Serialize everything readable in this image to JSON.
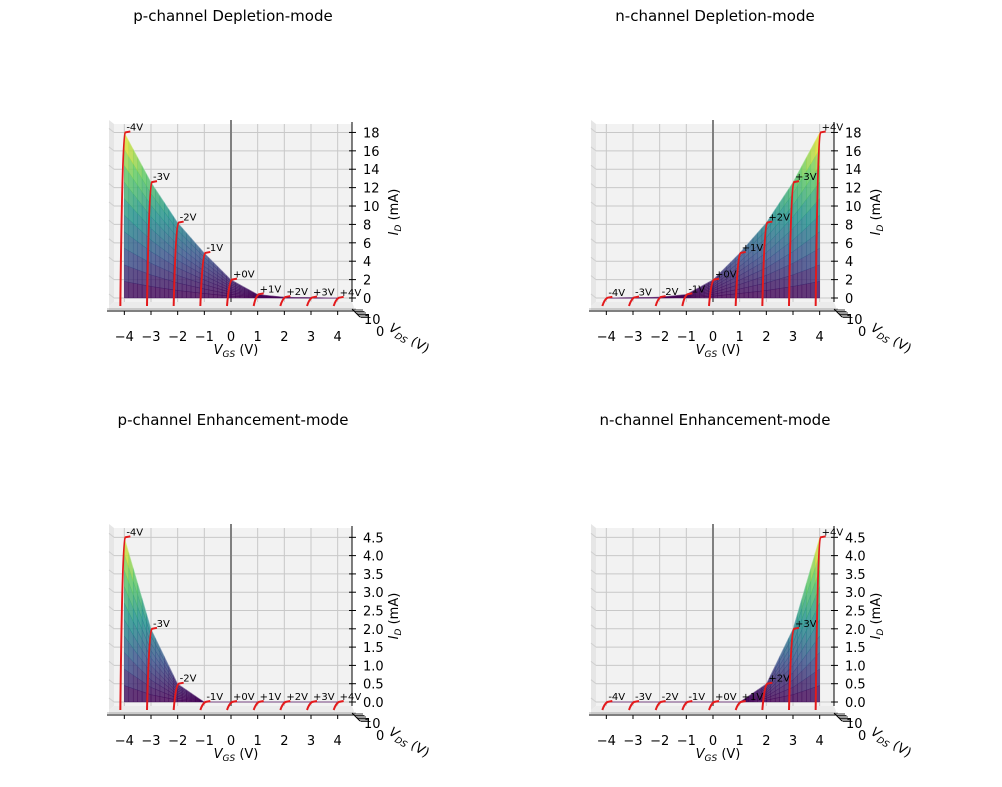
{
  "chart_data": [
    {
      "type": "area",
      "panel": 0,
      "title": "p-channel Depletion-mode",
      "xlabel_main": "V",
      "xlabel_sub": "GS",
      "xlabel_unit": " (V)",
      "ylabel_main": "I",
      "ylabel_sub": "D",
      "ylabel_unit": " (mA)",
      "dlabel_main": "V",
      "dlabel_sub": "DS",
      "dlabel_unit": " (V)",
      "x_ticks": [
        "−4",
        "−3",
        "−2",
        "−1",
        "0",
        "1",
        "2",
        "3",
        "4"
      ],
      "z_ticks": [
        "0",
        "2",
        "4",
        "6",
        "8",
        "10",
        "12",
        "14",
        "16",
        "18"
      ],
      "z_tick_values": [
        0,
        2,
        4,
        6,
        8,
        10,
        12,
        14,
        16,
        18
      ],
      "depth_ticks": [
        "10",
        "0"
      ],
      "xlim": [
        -4.5,
        4.5
      ],
      "zlim": [
        0,
        18.7
      ],
      "vgs": [
        -4,
        -3,
        -2,
        -1,
        0,
        1,
        2,
        3,
        4
      ],
      "curve_labels": [
        "-4V",
        "-3V",
        "-2V",
        "-1V",
        "+0V",
        "+1V",
        "+2V",
        "+3V",
        "+4V"
      ],
      "peak_id": [
        18.0,
        12.6,
        8.2,
        4.9,
        2.0,
        0.4,
        0.1,
        0.05,
        0.02
      ],
      "grid": true
    },
    {
      "type": "area",
      "panel": 1,
      "title": "n-channel Depletion-mode",
      "xlabel_main": "V",
      "xlabel_sub": "GS",
      "xlabel_unit": " (V)",
      "ylabel_main": "I",
      "ylabel_sub": "D",
      "ylabel_unit": " (mA)",
      "dlabel_main": "V",
      "dlabel_sub": "DS",
      "dlabel_unit": " (V)",
      "x_ticks": [
        "−4",
        "−3",
        "−2",
        "−1",
        "0",
        "1",
        "2",
        "3",
        "4"
      ],
      "z_ticks": [
        "0",
        "2",
        "4",
        "6",
        "8",
        "10",
        "12",
        "14",
        "16",
        "18"
      ],
      "z_tick_values": [
        0,
        2,
        4,
        6,
        8,
        10,
        12,
        14,
        16,
        18
      ],
      "depth_ticks": [
        "10",
        "0"
      ],
      "xlim": [
        -4.5,
        4.5
      ],
      "zlim": [
        0,
        18.7
      ],
      "vgs": [
        -4,
        -3,
        -2,
        -1,
        0,
        1,
        2,
        3,
        4
      ],
      "curve_labels": [
        "-4V",
        "-3V",
        "-2V",
        "-1V",
        "+0V",
        "+1V",
        "+2V",
        "+3V",
        "+4V"
      ],
      "peak_id": [
        0.02,
        0.05,
        0.1,
        0.4,
        2.0,
        4.9,
        8.2,
        12.6,
        18.0
      ],
      "grid": true
    },
    {
      "type": "area",
      "panel": 2,
      "title": "p-channel Enhancement-mode",
      "xlabel_main": "V",
      "xlabel_sub": "GS",
      "xlabel_unit": " (V)",
      "ylabel_main": "I",
      "ylabel_sub": "D",
      "ylabel_unit": " (mA)",
      "dlabel_main": "V",
      "dlabel_sub": "DS",
      "dlabel_unit": " (V)",
      "x_ticks": [
        "−4",
        "−3",
        "−2",
        "−1",
        "0",
        "1",
        "2",
        "3",
        "4"
      ],
      "z_ticks": [
        "0.0",
        "0.5",
        "1.0",
        "1.5",
        "2.0",
        "2.5",
        "3.0",
        "3.5",
        "4.0",
        "4.5"
      ],
      "z_tick_values": [
        0,
        0.5,
        1,
        1.5,
        2,
        2.5,
        3,
        3.5,
        4,
        4.5
      ],
      "depth_ticks": [
        "10",
        "0"
      ],
      "xlim": [
        -4.5,
        4.5
      ],
      "zlim": [
        0,
        4.7
      ],
      "vgs": [
        -4,
        -3,
        -2,
        -1,
        0,
        1,
        2,
        3,
        4
      ],
      "curve_labels": [
        "-4V",
        "-3V",
        "-2V",
        "-1V",
        "+0V",
        "+1V",
        "+2V",
        "+3V",
        "+4V"
      ],
      "peak_id": [
        4.5,
        2.0,
        0.5,
        0.0,
        0.0,
        0.0,
        0.0,
        0.0,
        0.0
      ],
      "grid": true
    },
    {
      "type": "area",
      "panel": 3,
      "title": "n-channel Enhancement-mode",
      "xlabel_main": "V",
      "xlabel_sub": "GS",
      "xlabel_unit": " (V)",
      "ylabel_main": "I",
      "ylabel_sub": "D",
      "ylabel_unit": " (mA)",
      "dlabel_main": "V",
      "dlabel_sub": "DS",
      "dlabel_unit": " (V)",
      "x_ticks": [
        "−4",
        "−3",
        "−2",
        "−1",
        "0",
        "1",
        "2",
        "3",
        "4"
      ],
      "z_ticks": [
        "0.0",
        "0.5",
        "1.0",
        "1.5",
        "2.0",
        "2.5",
        "3.0",
        "3.5",
        "4.0",
        "4.5"
      ],
      "z_tick_values": [
        0,
        0.5,
        1,
        1.5,
        2,
        2.5,
        3,
        3.5,
        4,
        4.5
      ],
      "depth_ticks": [
        "10",
        "0"
      ],
      "xlim": [
        -4.5,
        4.5
      ],
      "zlim": [
        0,
        4.7
      ],
      "vgs": [
        -4,
        -3,
        -2,
        -1,
        0,
        1,
        2,
        3,
        4
      ],
      "curve_labels": [
        "-4V",
        "-3V",
        "-2V",
        "-1V",
        "+0V",
        "+1V",
        "+2V",
        "+3V",
        "+4V"
      ],
      "peak_id": [
        0.0,
        0.0,
        0.0,
        0.0,
        0.0,
        0.0,
        0.5,
        2.0,
        4.5
      ],
      "grid": true
    }
  ]
}
